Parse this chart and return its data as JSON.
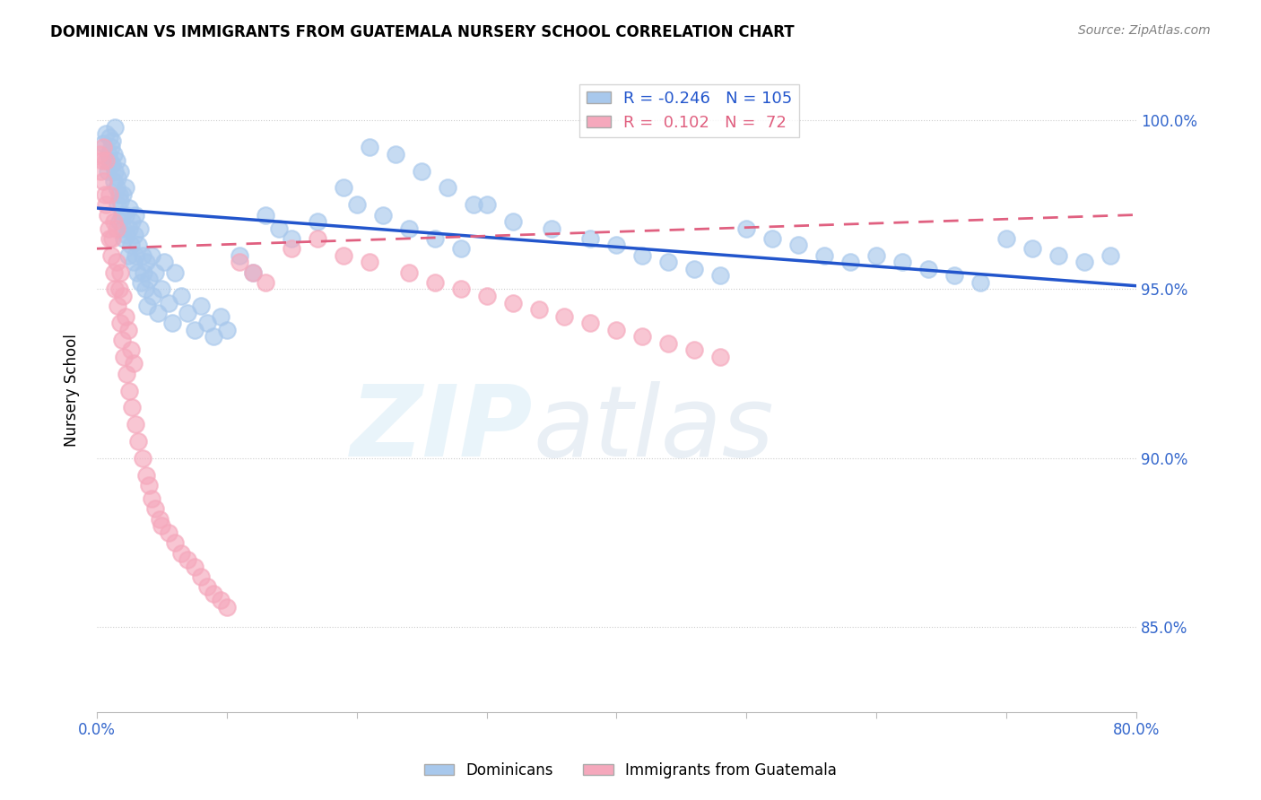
{
  "title": "DOMINICAN VS IMMIGRANTS FROM GUATEMALA NURSERY SCHOOL CORRELATION CHART",
  "source": "Source: ZipAtlas.com",
  "ylabel": "Nursery School",
  "ytick_labels": [
    "100.0%",
    "95.0%",
    "90.0%",
    "85.0%"
  ],
  "ytick_values": [
    1.0,
    0.95,
    0.9,
    0.85
  ],
  "xmin": 0.0,
  "xmax": 0.8,
  "ymin": 0.825,
  "ymax": 1.015,
  "blue_R": -0.246,
  "blue_N": 105,
  "pink_R": 0.102,
  "pink_N": 72,
  "blue_color": "#A8C8EC",
  "pink_color": "#F5A8BC",
  "blue_line_color": "#2255CC",
  "pink_line_color": "#E06080",
  "legend_label_blue": "Dominicans",
  "legend_label_pink": "Immigrants from Guatemala",
  "blue_line_x0": 0.0,
  "blue_line_y0": 0.974,
  "blue_line_x1": 0.8,
  "blue_line_y1": 0.951,
  "pink_line_x0": 0.0,
  "pink_line_y0": 0.962,
  "pink_line_x1": 0.8,
  "pink_line_y1": 0.972,
  "blue_scatter_x": [
    0.005,
    0.007,
    0.008,
    0.009,
    0.01,
    0.01,
    0.011,
    0.012,
    0.012,
    0.013,
    0.013,
    0.014,
    0.014,
    0.015,
    0.015,
    0.016,
    0.016,
    0.017,
    0.017,
    0.018,
    0.018,
    0.019,
    0.02,
    0.02,
    0.021,
    0.022,
    0.022,
    0.023,
    0.024,
    0.025,
    0.025,
    0.026,
    0.027,
    0.028,
    0.029,
    0.03,
    0.03,
    0.031,
    0.032,
    0.033,
    0.034,
    0.035,
    0.036,
    0.037,
    0.038,
    0.039,
    0.04,
    0.042,
    0.043,
    0.045,
    0.047,
    0.05,
    0.052,
    0.055,
    0.058,
    0.06,
    0.065,
    0.07,
    0.075,
    0.08,
    0.085,
    0.09,
    0.095,
    0.1,
    0.11,
    0.12,
    0.13,
    0.14,
    0.15,
    0.17,
    0.19,
    0.2,
    0.22,
    0.24,
    0.26,
    0.28,
    0.3,
    0.32,
    0.35,
    0.38,
    0.4,
    0.42,
    0.44,
    0.46,
    0.48,
    0.5,
    0.52,
    0.54,
    0.56,
    0.58,
    0.6,
    0.62,
    0.64,
    0.66,
    0.68,
    0.7,
    0.72,
    0.74,
    0.76,
    0.78,
    0.21,
    0.23,
    0.25,
    0.27,
    0.29
  ],
  "blue_scatter_y": [
    0.993,
    0.996,
    0.985,
    0.99,
    0.995,
    0.988,
    0.992,
    0.987,
    0.994,
    0.982,
    0.99,
    0.985,
    0.998,
    0.98,
    0.988,
    0.975,
    0.983,
    0.97,
    0.978,
    0.976,
    0.985,
    0.972,
    0.968,
    0.978,
    0.965,
    0.972,
    0.98,
    0.966,
    0.96,
    0.974,
    0.968,
    0.963,
    0.97,
    0.958,
    0.966,
    0.96,
    0.972,
    0.955,
    0.963,
    0.968,
    0.952,
    0.96,
    0.955,
    0.95,
    0.958,
    0.945,
    0.953,
    0.96,
    0.948,
    0.955,
    0.943,
    0.95,
    0.958,
    0.946,
    0.94,
    0.955,
    0.948,
    0.943,
    0.938,
    0.945,
    0.94,
    0.936,
    0.942,
    0.938,
    0.96,
    0.955,
    0.972,
    0.968,
    0.965,
    0.97,
    0.98,
    0.975,
    0.972,
    0.968,
    0.965,
    0.962,
    0.975,
    0.97,
    0.968,
    0.965,
    0.963,
    0.96,
    0.958,
    0.956,
    0.954,
    0.968,
    0.965,
    0.963,
    0.96,
    0.958,
    0.96,
    0.958,
    0.956,
    0.954,
    0.952,
    0.965,
    0.962,
    0.96,
    0.958,
    0.96,
    0.992,
    0.99,
    0.985,
    0.98,
    0.975
  ],
  "pink_scatter_x": [
    0.002,
    0.003,
    0.004,
    0.005,
    0.005,
    0.006,
    0.007,
    0.007,
    0.008,
    0.009,
    0.01,
    0.01,
    0.011,
    0.012,
    0.013,
    0.013,
    0.014,
    0.015,
    0.015,
    0.016,
    0.017,
    0.018,
    0.018,
    0.019,
    0.02,
    0.021,
    0.022,
    0.023,
    0.024,
    0.025,
    0.026,
    0.027,
    0.028,
    0.03,
    0.032,
    0.035,
    0.038,
    0.04,
    0.042,
    0.045,
    0.048,
    0.05,
    0.055,
    0.06,
    0.065,
    0.07,
    0.075,
    0.08,
    0.085,
    0.09,
    0.095,
    0.1,
    0.11,
    0.12,
    0.13,
    0.15,
    0.17,
    0.19,
    0.21,
    0.24,
    0.26,
    0.28,
    0.3,
    0.32,
    0.34,
    0.36,
    0.38,
    0.4,
    0.42,
    0.44,
    0.46,
    0.48
  ],
  "pink_scatter_y": [
    0.99,
    0.985,
    0.988,
    0.992,
    0.982,
    0.978,
    0.975,
    0.988,
    0.972,
    0.968,
    0.965,
    0.978,
    0.96,
    0.965,
    0.955,
    0.97,
    0.95,
    0.958,
    0.968,
    0.945,
    0.95,
    0.94,
    0.955,
    0.935,
    0.948,
    0.93,
    0.942,
    0.925,
    0.938,
    0.92,
    0.932,
    0.915,
    0.928,
    0.91,
    0.905,
    0.9,
    0.895,
    0.892,
    0.888,
    0.885,
    0.882,
    0.88,
    0.878,
    0.875,
    0.872,
    0.87,
    0.868,
    0.865,
    0.862,
    0.86,
    0.858,
    0.856,
    0.958,
    0.955,
    0.952,
    0.962,
    0.965,
    0.96,
    0.958,
    0.955,
    0.952,
    0.95,
    0.948,
    0.946,
    0.944,
    0.942,
    0.94,
    0.938,
    0.936,
    0.934,
    0.932,
    0.93
  ]
}
